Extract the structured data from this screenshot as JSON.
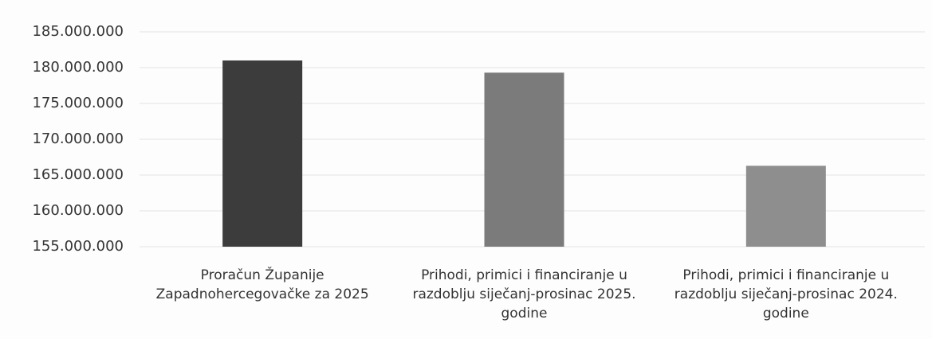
{
  "chart_data": {
    "type": "bar",
    "categories": [
      "Proračun Županije Zapadnohercegovačke za 2025",
      "Prihodi, primici i financiranje u razdoblju siječanj-prosinac 2025. godine",
      "Prihodi, primici i financiranje u razdoblju siječanj-prosinac 2024. godine"
    ],
    "values": [
      181000000,
      179300000,
      166300000
    ],
    "colors": [
      "#3c3c3c",
      "#7b7b7b",
      "#8e8e8e"
    ],
    "ylim": [
      155000000,
      185000000
    ],
    "yticks": [
      {
        "value": 155000000,
        "label": "155.000.000"
      },
      {
        "value": 160000000,
        "label": "160.000.000"
      },
      {
        "value": 165000000,
        "label": "165.000.000"
      },
      {
        "value": 170000000,
        "label": "170.000.000"
      },
      {
        "value": 175000000,
        "label": "175.000.000"
      },
      {
        "value": 180000000,
        "label": "180.000.000"
      },
      {
        "value": 185000000,
        "label": "185.000.000"
      }
    ],
    "grid": true
  }
}
